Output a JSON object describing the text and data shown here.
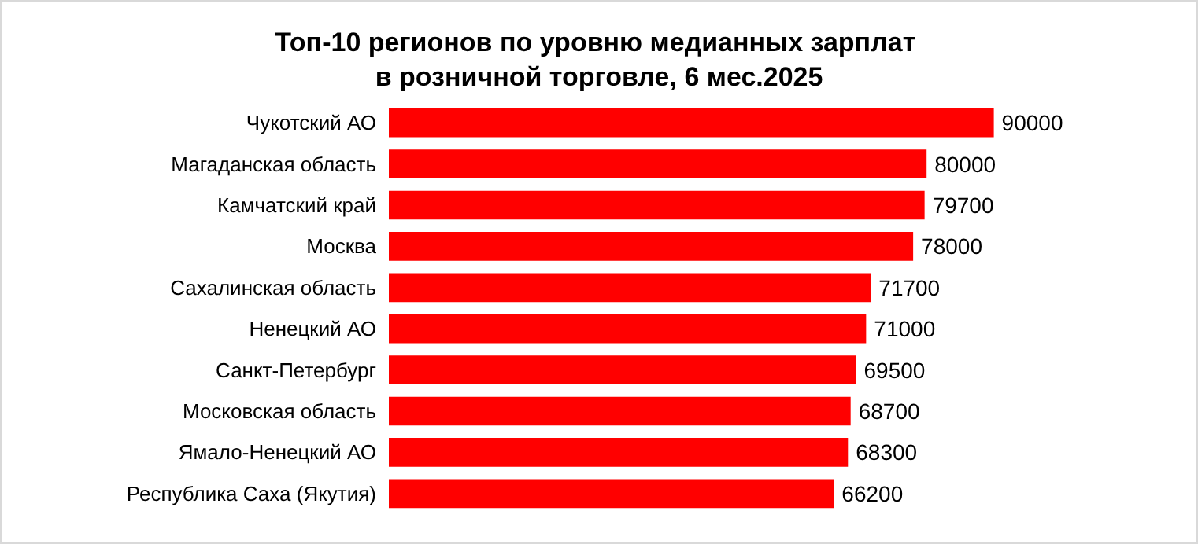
{
  "chart_data": {
    "type": "bar",
    "orientation": "horizontal",
    "title": "Топ-10 регионов по уровню медианных зарплат в розничной торговле, 6 мес.2025",
    "categories": [
      "Чукотский АО",
      "Магаданская область",
      "Камчатский край",
      "Москва",
      "Сахалинская область",
      "Ненецкий АО",
      "Санкт-Петербург",
      "Московская область",
      "Ямало-Ненецкий АО",
      "Республика Саха (Якутия)"
    ],
    "values": [
      90000,
      80000,
      79700,
      78000,
      71700,
      71000,
      69500,
      68700,
      68300,
      66200
    ],
    "color": "#ff0000",
    "data_labels": true
  }
}
